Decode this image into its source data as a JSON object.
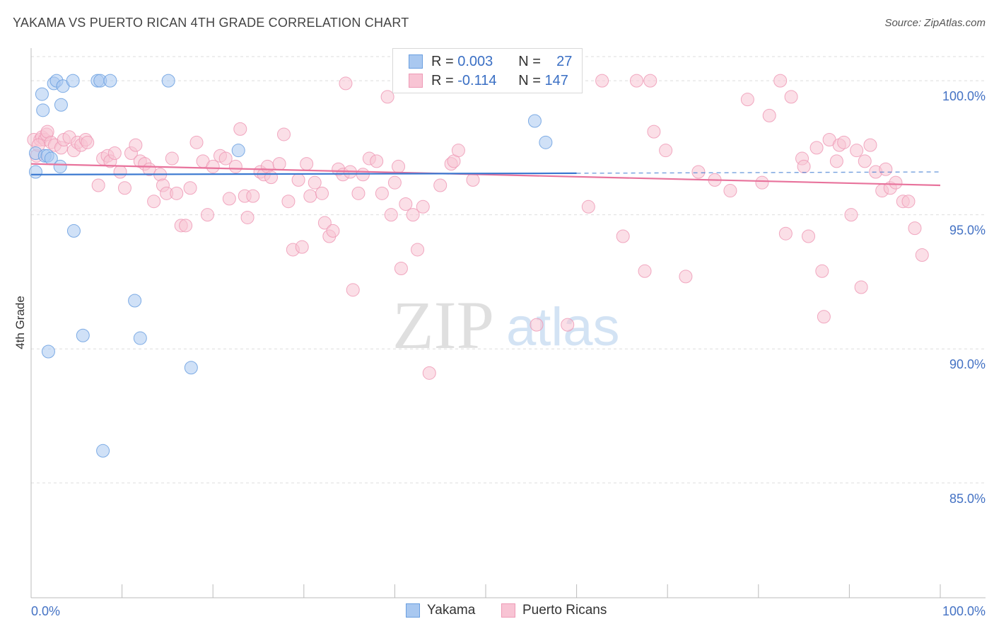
{
  "title": "YAKAMA VS PUERTO RICAN 4TH GRADE CORRELATION CHART",
  "source": "Source: ZipAtlas.com",
  "watermark": {
    "zip": "ZIP",
    "atlas": "atlas"
  },
  "legend": {
    "r_label": "R =",
    "n_label": "N =",
    "rows": [
      {
        "r": "0.003",
        "n": "27",
        "color": "#a9c8f0",
        "border": "#6a9fe0"
      },
      {
        "r": "-0.114",
        "n": "147",
        "color": "#f8c4d4",
        "border": "#ee9ab6"
      }
    ]
  },
  "bottom_legend": [
    {
      "label": "Yakama",
      "color": "#a9c8f0",
      "border": "#6a9fe0"
    },
    {
      "label": "Puerto Ricans",
      "color": "#f8c4d4",
      "border": "#ee9ab6"
    }
  ],
  "chart_data": {
    "type": "scatter",
    "title": "YAKAMA VS PUERTO RICAN 4TH GRADE CORRELATION CHART",
    "xlabel": "",
    "ylabel": "4th Grade",
    "xlim": [
      0,
      100
    ],
    "ylim": [
      80.8,
      100.9
    ],
    "x_tick_labels": [
      "0.0%",
      "100.0%"
    ],
    "y_ticks": [
      {
        "value": 100,
        "label": "100.0%"
      },
      {
        "value": 95,
        "label": "95.0%"
      },
      {
        "value": 90,
        "label": "90.0%"
      },
      {
        "value": 85,
        "label": "85.0%"
      }
    ],
    "series": [
      {
        "name": "Yakama",
        "color": "#a9c8f0",
        "border": "#6a9fe0",
        "trend": {
          "x0": 0,
          "y0": 96.5,
          "x1": 60,
          "y1": 96.55,
          "dash_to": 100,
          "dash_y": 96.6,
          "color": "#3a78d0"
        },
        "points": [
          [
            0.5,
            97.3
          ],
          [
            0.5,
            96.6
          ],
          [
            1.2,
            99.5
          ],
          [
            1.3,
            98.9
          ],
          [
            1.5,
            97.2
          ],
          [
            1.8,
            97.2
          ],
          [
            1.9,
            89.9
          ],
          [
            2.2,
            97.1
          ],
          [
            2.5,
            99.9
          ],
          [
            2.8,
            100.0
          ],
          [
            3.2,
            96.8
          ],
          [
            3.3,
            99.1
          ],
          [
            3.5,
            99.8
          ],
          [
            4.6,
            100.0
          ],
          [
            4.7,
            94.4
          ],
          [
            5.7,
            90.5
          ],
          [
            7.3,
            100.0
          ],
          [
            7.6,
            100.0
          ],
          [
            7.9,
            86.2
          ],
          [
            8.7,
            100.0
          ],
          [
            11.4,
            91.8
          ],
          [
            12.0,
            90.4
          ],
          [
            15.1,
            100.0
          ],
          [
            17.6,
            89.3
          ],
          [
            22.8,
            97.4
          ],
          [
            55.4,
            98.5
          ],
          [
            56.6,
            97.7
          ]
        ]
      },
      {
        "name": "Puerto Ricans",
        "color": "#f8c4d4",
        "border": "#ee9ab6",
        "trend": {
          "x0": 0,
          "y0": 96.9,
          "x1": 100,
          "y1": 96.1,
          "color": "#e8739c"
        },
        "points": [
          [
            0.3,
            97.8
          ],
          [
            0.6,
            97.2
          ],
          [
            1.0,
            97.8
          ],
          [
            1.2,
            97.9
          ],
          [
            1.5,
            97.8
          ],
          [
            1.7,
            98.0
          ],
          [
            1.8,
            98.1
          ],
          [
            2.2,
            97.7
          ],
          [
            2.6,
            97.6
          ],
          [
            3.3,
            97.5
          ],
          [
            3.6,
            97.8
          ],
          [
            4.2,
            97.9
          ],
          [
            4.7,
            97.4
          ],
          [
            5.1,
            97.7
          ],
          [
            5.5,
            97.6
          ],
          [
            6.0,
            97.8
          ],
          [
            6.2,
            97.7
          ],
          [
            7.4,
            96.1
          ],
          [
            7.9,
            97.1
          ],
          [
            8.4,
            97.2
          ],
          [
            8.7,
            97.0
          ],
          [
            9.2,
            97.3
          ],
          [
            9.8,
            96.6
          ],
          [
            10.3,
            96.0
          ],
          [
            11.0,
            97.3
          ],
          [
            11.5,
            97.6
          ],
          [
            12.0,
            97.0
          ],
          [
            12.5,
            96.9
          ],
          [
            13.0,
            96.7
          ],
          [
            13.5,
            95.5
          ],
          [
            14.2,
            96.5
          ],
          [
            14.5,
            96.1
          ],
          [
            14.9,
            95.8
          ],
          [
            15.5,
            97.1
          ],
          [
            16.0,
            95.8
          ],
          [
            16.5,
            94.6
          ],
          [
            17.0,
            94.6
          ],
          [
            17.5,
            96.0
          ],
          [
            18.2,
            97.7
          ],
          [
            18.9,
            97.0
          ],
          [
            19.4,
            95.0
          ],
          [
            20.0,
            96.8
          ],
          [
            20.8,
            97.2
          ],
          [
            21.4,
            97.1
          ],
          [
            21.8,
            95.6
          ],
          [
            22.5,
            96.8
          ],
          [
            23.0,
            98.2
          ],
          [
            23.5,
            95.7
          ],
          [
            23.8,
            94.9
          ],
          [
            24.4,
            95.7
          ],
          [
            25.2,
            96.6
          ],
          [
            25.6,
            96.5
          ],
          [
            26.0,
            96.8
          ],
          [
            26.4,
            96.4
          ],
          [
            27.3,
            96.9
          ],
          [
            27.8,
            98.0
          ],
          [
            28.3,
            95.5
          ],
          [
            28.8,
            93.7
          ],
          [
            29.4,
            96.3
          ],
          [
            29.8,
            93.8
          ],
          [
            30.3,
            96.9
          ],
          [
            30.7,
            95.7
          ],
          [
            31.2,
            96.2
          ],
          [
            32.0,
            95.8
          ],
          [
            32.3,
            94.7
          ],
          [
            32.8,
            94.2
          ],
          [
            33.2,
            94.4
          ],
          [
            33.8,
            96.7
          ],
          [
            34.3,
            96.5
          ],
          [
            34.6,
            99.9
          ],
          [
            35.1,
            96.6
          ],
          [
            35.4,
            92.2
          ],
          [
            36.0,
            95.8
          ],
          [
            36.5,
            96.5
          ],
          [
            37.2,
            97.1
          ],
          [
            38.0,
            97.0
          ],
          [
            38.6,
            95.8
          ],
          [
            39.2,
            99.4
          ],
          [
            39.6,
            95.0
          ],
          [
            40.0,
            96.2
          ],
          [
            40.4,
            96.8
          ],
          [
            40.7,
            93.0
          ],
          [
            41.2,
            95.4
          ],
          [
            42.0,
            95.0
          ],
          [
            42.5,
            93.7
          ],
          [
            43.1,
            95.3
          ],
          [
            43.8,
            89.1
          ],
          [
            45.0,
            96.1
          ],
          [
            45.6,
            99.9
          ],
          [
            46.2,
            96.9
          ],
          [
            46.5,
            97.0
          ],
          [
            47.0,
            97.4
          ],
          [
            48.0,
            99.9
          ],
          [
            48.6,
            96.3
          ],
          [
            51.2,
            99.9
          ],
          [
            52.0,
            100.0
          ],
          [
            55.6,
            90.9
          ],
          [
            57.8,
            100.0
          ],
          [
            59.0,
            90.9
          ],
          [
            59.7,
            100.0
          ],
          [
            61.3,
            95.3
          ],
          [
            62.8,
            100.0
          ],
          [
            65.1,
            94.2
          ],
          [
            66.6,
            100.0
          ],
          [
            67.5,
            92.9
          ],
          [
            68.1,
            100.0
          ],
          [
            68.5,
            98.1
          ],
          [
            69.8,
            97.4
          ],
          [
            72.0,
            92.7
          ],
          [
            73.4,
            96.6
          ],
          [
            75.2,
            96.3
          ],
          [
            76.9,
            95.9
          ],
          [
            78.8,
            99.3
          ],
          [
            80.4,
            96.2
          ],
          [
            81.2,
            98.7
          ],
          [
            82.4,
            100.0
          ],
          [
            83.0,
            94.3
          ],
          [
            83.6,
            99.4
          ],
          [
            84.8,
            97.1
          ],
          [
            85.0,
            96.8
          ],
          [
            85.5,
            94.2
          ],
          [
            86.4,
            97.5
          ],
          [
            87.0,
            92.9
          ],
          [
            87.2,
            91.2
          ],
          [
            87.8,
            97.8
          ],
          [
            88.6,
            97.0
          ],
          [
            88.9,
            97.6
          ],
          [
            89.4,
            97.7
          ],
          [
            90.2,
            95.0
          ],
          [
            90.8,
            97.4
          ],
          [
            91.3,
            92.3
          ],
          [
            91.7,
            97.0
          ],
          [
            92.3,
            97.6
          ],
          [
            92.9,
            96.6
          ],
          [
            93.6,
            95.9
          ],
          [
            94.0,
            96.7
          ],
          [
            94.5,
            96.0
          ],
          [
            95.1,
            96.2
          ],
          [
            95.9,
            95.5
          ],
          [
            96.5,
            95.5
          ],
          [
            97.2,
            94.5
          ],
          [
            98.0,
            93.5
          ],
          [
            0.8,
            97.6
          ]
        ]
      }
    ]
  }
}
